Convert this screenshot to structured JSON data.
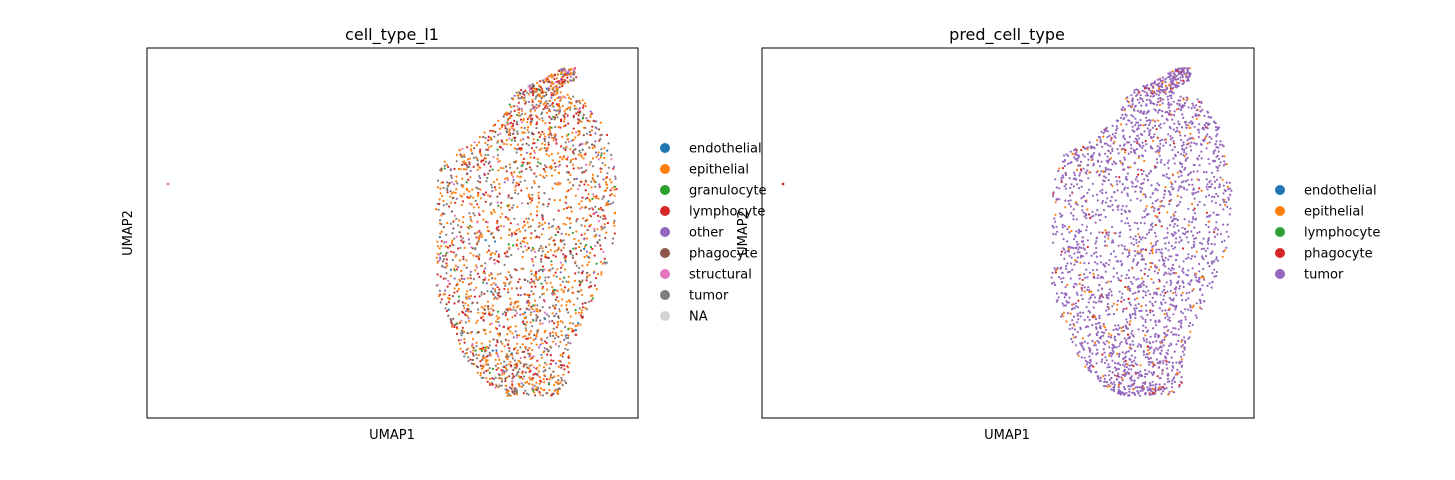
{
  "chart_data": [
    {
      "type": "scatter",
      "title": "cell_type_l1",
      "xlabel": "UMAP1",
      "ylabel": "UMAP2",
      "grid": false,
      "legend_placement": "right",
      "legend": [
        {
          "label": "endothelial",
          "color": "#1f77b4"
        },
        {
          "label": "epithelial",
          "color": "#ff7f0e"
        },
        {
          "label": "granulocyte",
          "color": "#2ca02c"
        },
        {
          "label": "lymphocyte",
          "color": "#d62728"
        },
        {
          "label": "other",
          "color": "#9467bd"
        },
        {
          "label": "phagocyte",
          "color": "#8c564b"
        },
        {
          "label": "structural",
          "color": "#e377c2"
        },
        {
          "label": "tumor",
          "color": "#7f7f7f"
        },
        {
          "label": "NA",
          "color": "#d3d3d3"
        }
      ],
      "color_mix": {
        "epithelial": 0.4,
        "tumor": 0.2,
        "lymphocyte": 0.18,
        "phagocyte": 0.08,
        "other": 0.05,
        "structural": 0.05,
        "granulocyte": 0.03,
        "endothelial": 0.01
      }
    },
    {
      "type": "scatter",
      "title": "pred_cell_type",
      "xlabel": "UMAP1",
      "ylabel": "UMAP2",
      "grid": false,
      "legend_placement": "right",
      "legend": [
        {
          "label": "endothelial",
          "color": "#1f77b4"
        },
        {
          "label": "epithelial",
          "color": "#ff7f0e"
        },
        {
          "label": "lymphocyte",
          "color": "#2ca02c"
        },
        {
          "label": "phagocyte",
          "color": "#d62728"
        },
        {
          "label": "tumor",
          "color": "#9467bd"
        }
      ],
      "color_mix": {
        "tumor": 0.88,
        "epithelial": 0.09,
        "phagocyte": 0.03
      }
    }
  ]
}
